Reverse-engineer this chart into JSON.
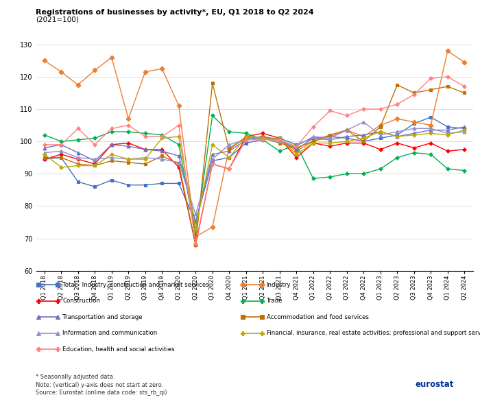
{
  "title": "Registrations of businesses by activity*, EU, Q1 2018 to Q2 2024",
  "subtitle": "(2021=100)",
  "quarters": [
    "Q1 2018",
    "Q2 2018",
    "Q3 2018",
    "Q4 2018",
    "Q1 2019",
    "Q2 2019",
    "Q3 2019",
    "Q4 2019",
    "Q1 2020",
    "Q2 2020",
    "Q3 2020",
    "Q4 2020",
    "Q1 2021",
    "Q2 2021",
    "Q3 2021",
    "Q4 2021",
    "Q1 2022",
    "Q2 2022",
    "Q3 2022",
    "Q4 2022",
    "Q1 2023",
    "Q2 2023",
    "Q3 2023",
    "Q4 2023",
    "Q1 2024",
    "Q2 2024"
  ],
  "left_series": [
    "Total - Industry, construction and market services",
    "Construction",
    "Transportation and storage",
    "Information and communication",
    "Education, health and social activities"
  ],
  "right_series": [
    "Industry",
    "Trade",
    "Accommodation and food services",
    "Financial, insurance, real estate activities; professional and support services"
  ],
  "series": {
    "Total - Industry, construction and market services": {
      "color": "#4472C4",
      "marker": "s",
      "values": [
        94.5,
        95.0,
        87.5,
        86.0,
        88.0,
        86.5,
        86.5,
        87.0,
        87.0,
        75.0,
        94.0,
        95.0,
        99.5,
        100.5,
        101.0,
        99.0,
        101.0,
        101.5,
        101.0,
        100.0,
        101.0,
        102.0,
        105.5,
        107.5,
        104.5,
        104.0
      ]
    },
    "Industry": {
      "color": "#ED7D31",
      "marker": "D",
      "values": [
        125.0,
        121.5,
        117.5,
        122.0,
        126.0,
        107.0,
        121.5,
        122.5,
        111.0,
        70.5,
        73.5,
        98.0,
        101.0,
        101.5,
        100.5,
        97.0,
        100.0,
        101.5,
        103.5,
        101.5,
        105.0,
        107.0,
        106.0,
        105.0,
        128.0,
        124.5
      ]
    },
    "Construction": {
      "color": "#FF0000",
      "marker": "P",
      "values": [
        94.5,
        96.0,
        94.5,
        93.0,
        99.0,
        99.5,
        97.5,
        97.5,
        92.0,
        68.0,
        93.0,
        91.5,
        101.5,
        102.5,
        101.0,
        95.0,
        99.5,
        98.5,
        99.5,
        99.5,
        97.5,
        99.5,
        98.0,
        99.5,
        97.0,
        97.5
      ]
    },
    "Trade": {
      "color": "#00B050",
      "marker": "P",
      "values": [
        102.0,
        100.0,
        100.5,
        101.0,
        103.0,
        103.0,
        102.5,
        102.0,
        99.0,
        71.0,
        108.0,
        103.0,
        102.5,
        100.5,
        97.0,
        99.0,
        88.5,
        89.0,
        90.0,
        90.0,
        91.5,
        95.0,
        96.5,
        96.0,
        91.5,
        91.0
      ]
    },
    "Transportation and storage": {
      "color": "#7070C0",
      "marker": "^",
      "values": [
        98.0,
        99.0,
        96.5,
        94.0,
        99.0,
        98.5,
        97.5,
        97.0,
        95.5,
        75.0,
        96.0,
        97.0,
        100.5,
        101.5,
        100.5,
        97.5,
        101.0,
        100.5,
        101.5,
        102.0,
        103.0,
        101.5,
        102.5,
        103.5,
        103.5,
        104.5
      ]
    },
    "Accommodation and food services": {
      "color": "#C07000",
      "marker": "s",
      "values": [
        95.0,
        95.0,
        93.0,
        92.5,
        94.0,
        93.5,
        93.0,
        95.5,
        93.0,
        68.0,
        118.0,
        97.5,
        101.5,
        101.0,
        99.5,
        98.0,
        100.0,
        102.0,
        103.5,
        100.0,
        104.5,
        117.5,
        115.0,
        116.0,
        117.0,
        115.0
      ]
    },
    "Information and communication": {
      "color": "#9090D0",
      "marker": "^",
      "values": [
        96.5,
        97.0,
        95.0,
        94.5,
        95.0,
        94.5,
        95.0,
        94.5,
        93.5,
        77.5,
        94.5,
        99.0,
        100.5,
        101.0,
        100.0,
        98.5,
        101.5,
        101.0,
        103.5,
        106.0,
        102.0,
        103.0,
        104.0,
        104.0,
        102.5,
        103.0
      ]
    },
    "Financial, insurance, real estate activities; professional and support services": {
      "color": "#C0A800",
      "marker": "P",
      "values": [
        96.0,
        92.0,
        92.5,
        92.5,
        96.0,
        94.5,
        94.5,
        101.0,
        101.5,
        73.0,
        99.0,
        95.0,
        101.5,
        101.0,
        101.0,
        96.0,
        99.5,
        99.5,
        100.0,
        101.0,
        103.0,
        101.5,
        102.0,
        102.5,
        102.0,
        103.5
      ]
    },
    "Education, health and social activities": {
      "color": "#FF8080",
      "marker": "P",
      "values": [
        99.0,
        99.0,
        104.0,
        99.0,
        104.0,
        105.0,
        101.5,
        101.5,
        105.0,
        68.5,
        93.0,
        91.5,
        100.5,
        100.5,
        100.5,
        98.5,
        104.5,
        109.5,
        108.0,
        110.0,
        110.0,
        111.5,
        114.5,
        119.5,
        120.0,
        117.0
      ]
    }
  },
  "ylim": [
    60,
    135
  ],
  "yticks": [
    60,
    70,
    80,
    90,
    100,
    110,
    120,
    130
  ],
  "footer_lines": [
    "* Seasonally adjusted data.",
    "Note: (vertical) y-axis does not start at zero.",
    "Source: Eurostat (online data code: sts_rb_qi)"
  ],
  "background_color": "#FFFFFF",
  "grid_color": "#D0D0D0"
}
